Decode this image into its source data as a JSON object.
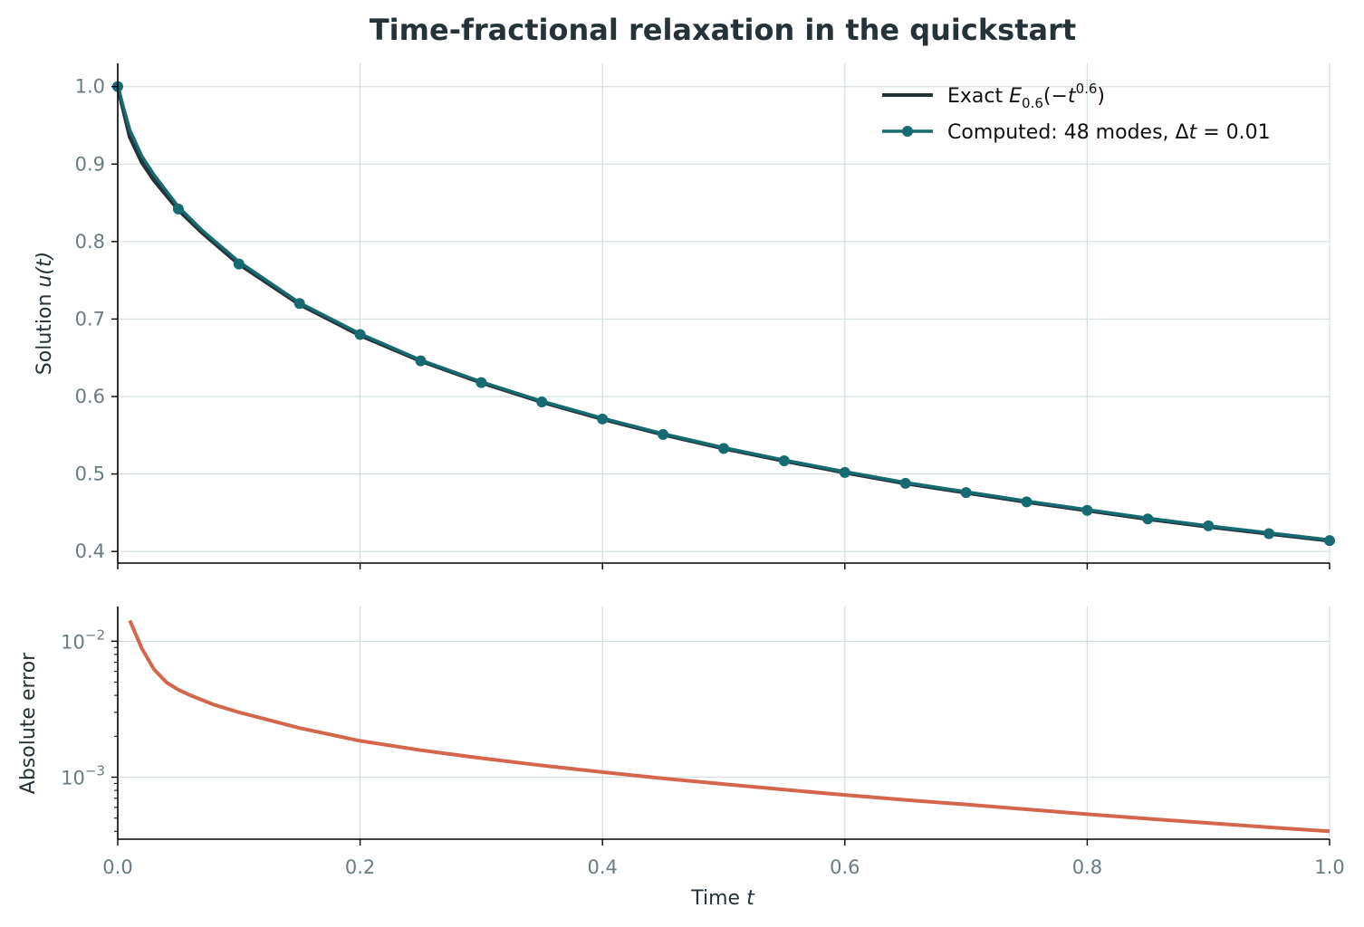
{
  "chart_data": [
    {
      "type": "line",
      "title": "Time-fractional relaxation in the quickstart",
      "xlabel": "",
      "ylabel_prefix": "Solution ",
      "ylabel_math": "u(t)",
      "xlim": [
        0.0,
        1.0
      ],
      "ylim": [
        0.385,
        1.03
      ],
      "x_ticks": [
        0.0,
        0.2,
        0.4,
        0.6,
        0.8,
        1.0
      ],
      "y_ticks": [
        0.4,
        0.5,
        0.6,
        0.7,
        0.8,
        0.9,
        1.0
      ],
      "y_tick_labels": [
        "0.4",
        "0.5",
        "0.6",
        "0.7",
        "0.8",
        "0.9",
        "1.0"
      ],
      "grid": true,
      "legend_position": "top-right",
      "colors": {
        "exact": "#253238",
        "computed": "#166b72"
      },
      "series": [
        {
          "name": "Exact E_{0.6}(−t^{0.6})",
          "legend_parts": {
            "prefix": "Exact ",
            "E": "E",
            "sub": "0.6",
            "open": "(−",
            "t": "t",
            "sup": "0.6",
            "close": ")"
          },
          "x": [
            0.0,
            0.01,
            0.02,
            0.03,
            0.05,
            0.07,
            0.1,
            0.15,
            0.2,
            0.25,
            0.3,
            0.35,
            0.4,
            0.45,
            0.5,
            0.55,
            0.6,
            0.65,
            0.7,
            0.75,
            0.8,
            0.85,
            0.9,
            0.95,
            1.0
          ],
          "y": [
            1.0,
            0.935,
            0.902,
            0.879,
            0.841,
            0.811,
            0.771,
            0.719,
            0.679,
            0.646,
            0.618,
            0.593,
            0.571,
            0.551,
            0.533,
            0.517,
            0.502,
            0.488,
            0.476,
            0.464,
            0.453,
            0.442,
            0.432,
            0.423,
            0.414
          ]
        },
        {
          "name": "Computed: 48 modes, Δt = 0.01",
          "legend_parts": {
            "prefix": "Computed: 48 modes, ",
            "delta": "Δ",
            "t": "t",
            "eq": " = 0.01"
          },
          "marker": "circle",
          "x": [
            0.0,
            0.05,
            0.1,
            0.15,
            0.2,
            0.25,
            0.3,
            0.35,
            0.4,
            0.45,
            0.5,
            0.55,
            0.6,
            0.65,
            0.7,
            0.75,
            0.8,
            0.85,
            0.9,
            0.95,
            1.0
          ],
          "y": [
            1.0,
            0.842,
            0.771,
            0.72,
            0.68,
            0.646,
            0.618,
            0.593,
            0.571,
            0.551,
            0.533,
            0.517,
            0.502,
            0.488,
            0.476,
            0.464,
            0.453,
            0.442,
            0.433,
            0.423,
            0.414
          ],
          "line_x": [
            0.0,
            0.01,
            0.02,
            0.03,
            0.05,
            0.07,
            0.1,
            0.15,
            0.2,
            0.25,
            0.3,
            0.35,
            0.4,
            0.45,
            0.5,
            0.55,
            0.6,
            0.65,
            0.7,
            0.75,
            0.8,
            0.85,
            0.9,
            0.95,
            1.0
          ],
          "line_y": [
            1.0,
            0.944,
            0.91,
            0.886,
            0.845,
            0.814,
            0.774,
            0.721,
            0.681,
            0.647,
            0.619,
            0.594,
            0.572,
            0.552,
            0.534,
            0.518,
            0.503,
            0.489,
            0.477,
            0.465,
            0.454,
            0.443,
            0.433,
            0.424,
            0.415
          ]
        }
      ]
    },
    {
      "type": "line",
      "xlabel_prefix": "Time ",
      "xlabel_math": "t",
      "ylabel": "Absolute error",
      "xlim": [
        0.0,
        1.0
      ],
      "yscale": "log",
      "ylim": [
        0.00035,
        0.018
      ],
      "x_ticks": [
        0.0,
        0.2,
        0.4,
        0.6,
        0.8,
        1.0
      ],
      "x_tick_labels": [
        "0.0",
        "0.2",
        "0.4",
        "0.6",
        "0.8",
        "1.0"
      ],
      "y_ticks_major": [
        0.001,
        0.01
      ],
      "y_tick_labels": [
        {
          "base": "10",
          "exp": "−3"
        },
        {
          "base": "10",
          "exp": "−2"
        }
      ],
      "grid": true,
      "colors": {
        "error": "#d4664c"
      },
      "series": [
        {
          "name": "",
          "x": [
            0.01,
            0.02,
            0.03,
            0.04,
            0.05,
            0.06,
            0.08,
            0.1,
            0.15,
            0.2,
            0.25,
            0.3,
            0.35,
            0.4,
            0.45,
            0.5,
            0.55,
            0.6,
            0.65,
            0.7,
            0.75,
            0.8,
            0.85,
            0.9,
            0.95,
            1.0
          ],
          "y": [
            0.0142,
            0.0088,
            0.0062,
            0.005,
            0.0044,
            0.004,
            0.0034,
            0.003,
            0.0023,
            0.00185,
            0.00158,
            0.00138,
            0.00122,
            0.00109,
            0.00098,
            0.00089,
            0.00081,
            0.00074,
            0.00068,
            0.00063,
            0.00058,
            0.000535,
            0.000495,
            0.00046,
            0.000428,
            0.0004
          ]
        }
      ]
    }
  ]
}
